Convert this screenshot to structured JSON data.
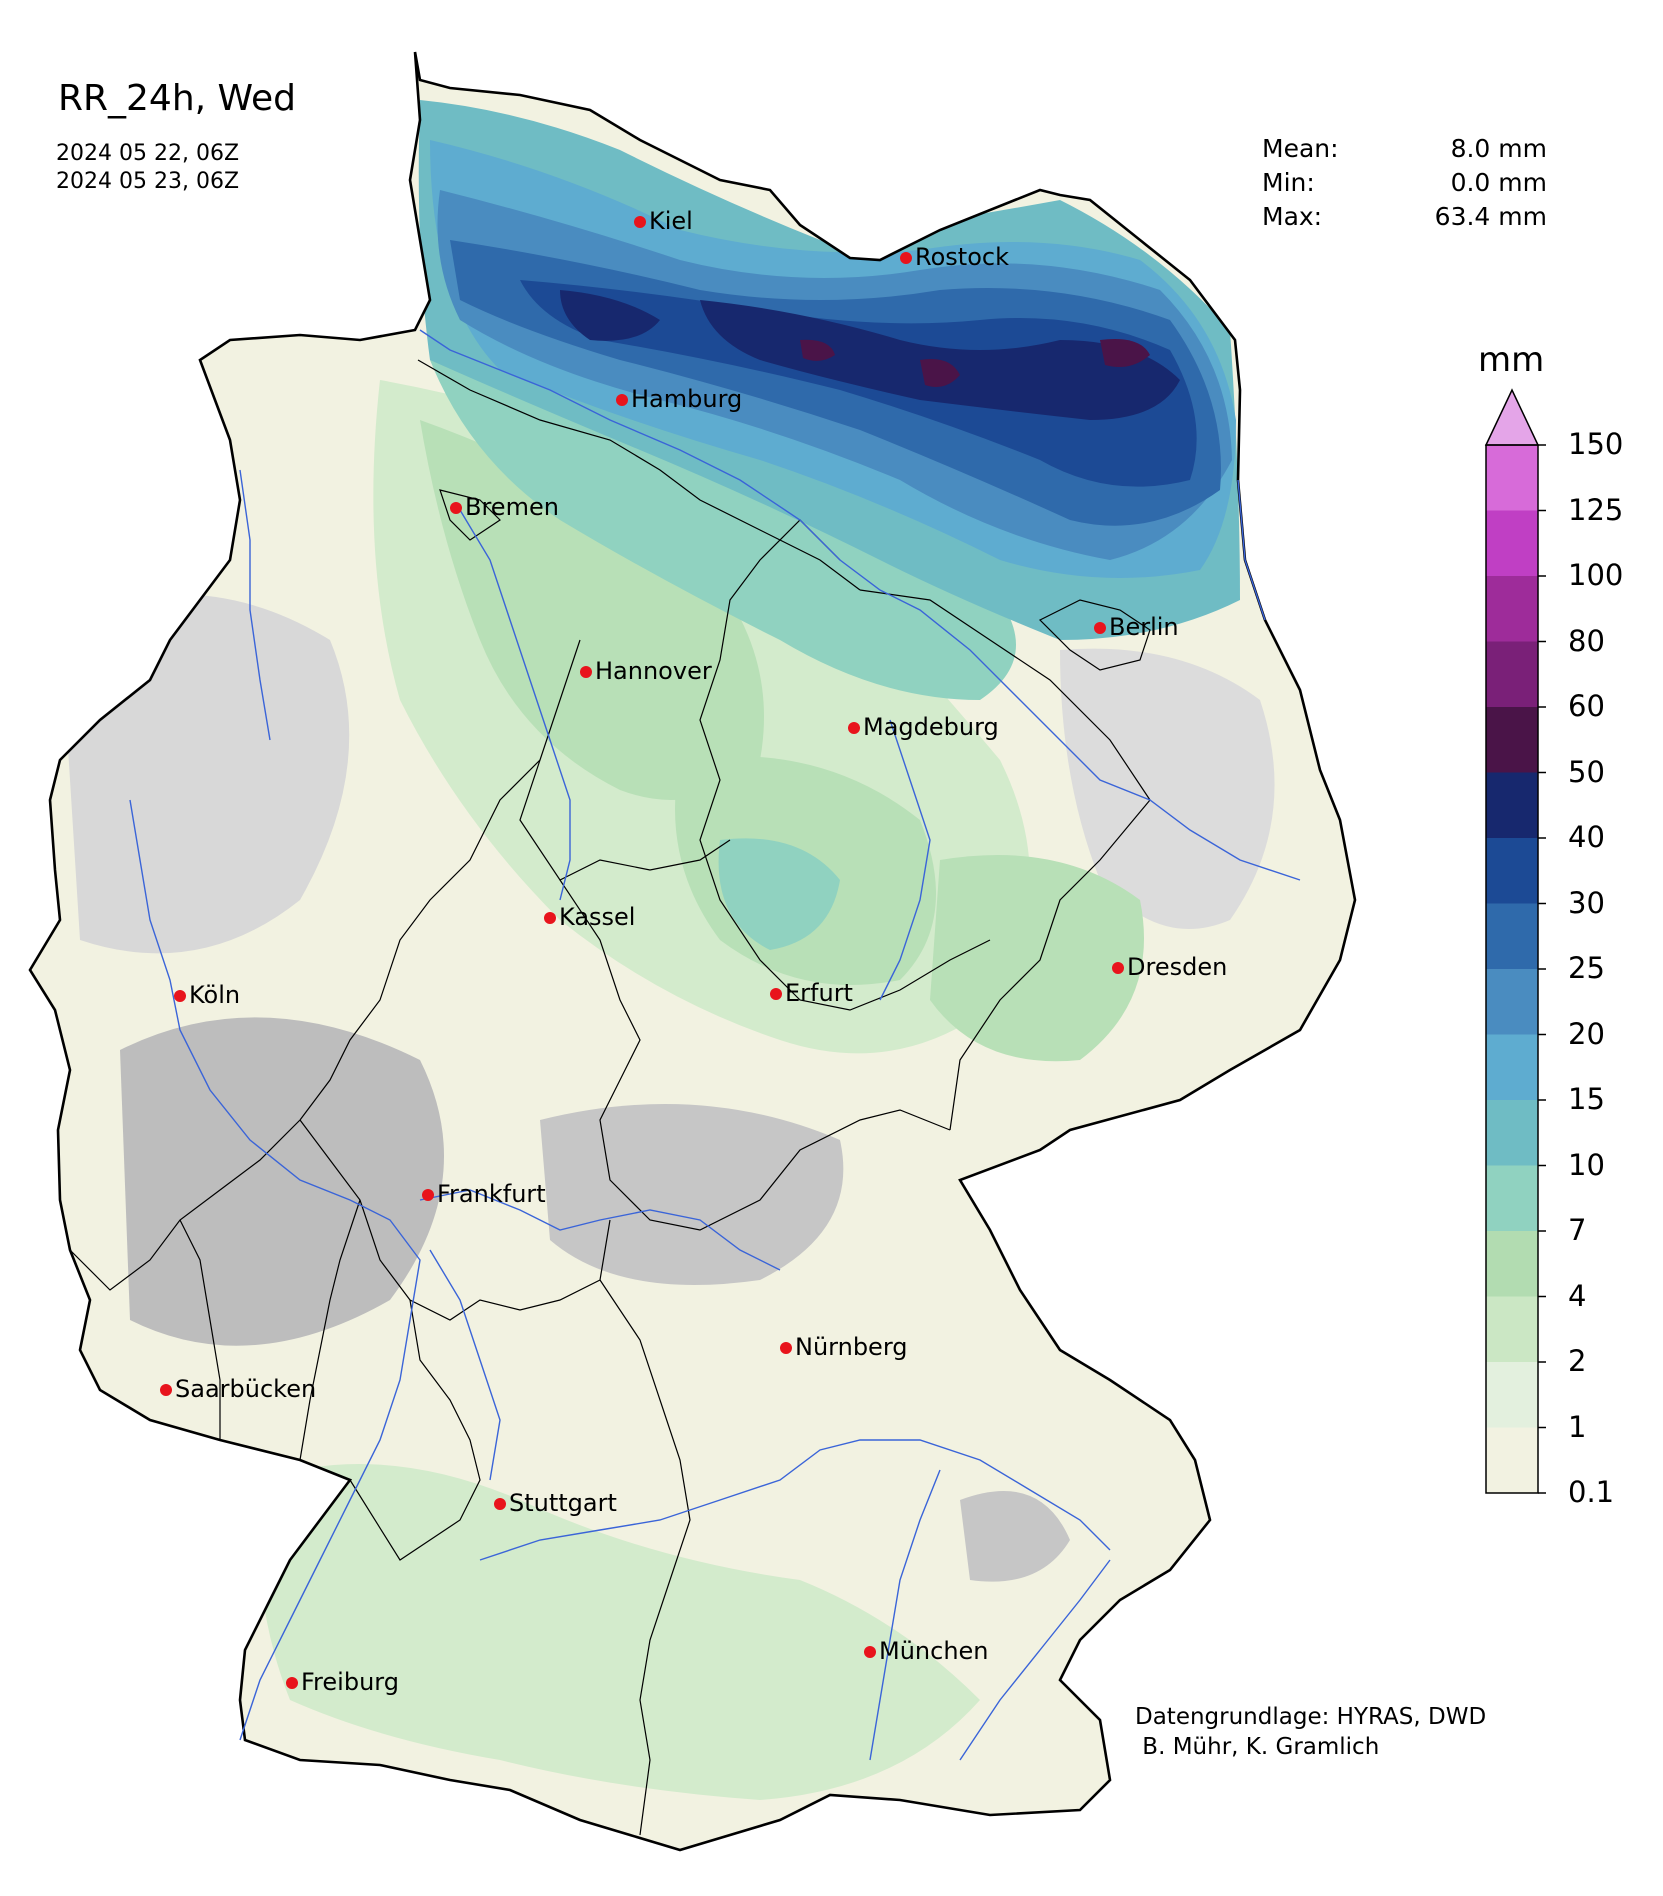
{
  "title": "RR_24h, Wed",
  "period_start": "2024 05 22, 06Z",
  "period_end": "2024 05 23, 06Z",
  "stats": [
    {
      "label": "Mean:",
      "value": "8.0 mm"
    },
    {
      "label": "Min:",
      "value": "0.0 mm"
    },
    {
      "label": "Max:",
      "value": "63.4 mm"
    }
  ],
  "credit": {
    "line1": "Datengrundlage: HYRAS, DWD",
    "line2": " B. Mühr, K. Gramlich"
  },
  "colorbar": {
    "unit": "mm",
    "ticks": [
      "0.1",
      "1",
      "2",
      "4",
      "7",
      "10",
      "15",
      "20",
      "25",
      "30",
      "40",
      "50",
      "60",
      "80",
      "100",
      "125",
      "150"
    ],
    "colors": [
      "#f2f2e1",
      "#e3f0de",
      "#cbe7c4",
      "#b2dcb1",
      "#90d2c0",
      "#6fbcc4",
      "#5eacd0",
      "#4a8cc0",
      "#2f6aab",
      "#1c4a95",
      "#17286e",
      "#4a1448",
      "#7a2078",
      "#9e2c9a",
      "#c03fc4",
      "#d76bd9",
      "#e4a5e8"
    ]
  },
  "cities": [
    {
      "name": "Kiel"
    },
    {
      "name": "Rostock"
    },
    {
      "name": "Hamburg"
    },
    {
      "name": "Bremen"
    },
    {
      "name": "Berlin"
    },
    {
      "name": "Hannover"
    },
    {
      "name": "Magdeburg"
    },
    {
      "name": "Kassel"
    },
    {
      "name": "Dresden"
    },
    {
      "name": "Köln"
    },
    {
      "name": "Erfurt"
    },
    {
      "name": "Frankfurt"
    },
    {
      "name": "Nürnberg"
    },
    {
      "name": "Saarbücken"
    },
    {
      "name": "Stuttgart"
    },
    {
      "name": "München"
    },
    {
      "name": "Freiburg"
    }
  ],
  "style": {
    "city_marker": "#e8141c",
    "river": "#3a64d8",
    "border": "#000000"
  }
}
